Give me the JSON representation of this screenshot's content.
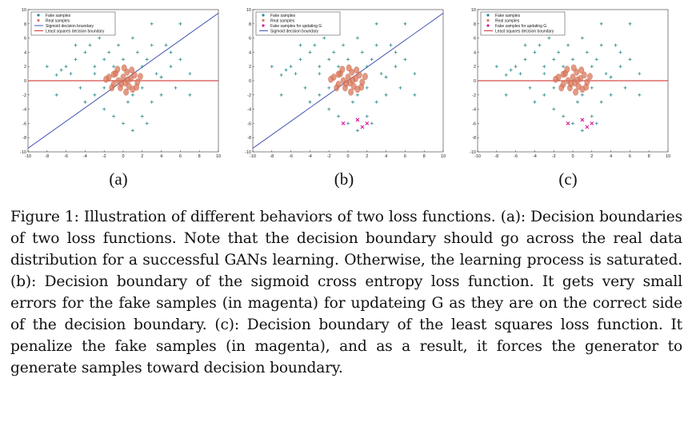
{
  "figure": {
    "panels": [
      {
        "label": "(a)",
        "legend": [
          "Fake samples",
          "Real samples",
          "Sigmoid decision boundary",
          "Least squares decision boundary"
        ],
        "show_magenta": false,
        "show_sigmoid": true,
        "show_lsq": true
      },
      {
        "label": "(b)",
        "legend": [
          "Fake samples",
          "Real samples",
          "Fake samples for updating G",
          "Sigmoid decision boundary"
        ],
        "show_magenta": true,
        "show_sigmoid": true,
        "show_lsq": false
      },
      {
        "label": "(c)",
        "legend": [
          "Fake samples",
          "Real samples",
          "Fake samples for updating G",
          "Least squares decision boundary"
        ],
        "show_magenta": true,
        "show_sigmoid": false,
        "show_lsq": true
      }
    ],
    "caption": "Figure 1: Illustration of different behaviors of two loss functions. (a): Decision boundaries of two loss functions. Note that the decision boundary should go across the real data distribution for a successful GANs learning. Otherwise, the learning process is saturated. (b): Decision boundary of the sigmoid cross entropy loss function. It gets very small errors for the fake samples (in magenta) for updateing G as they are on the correct side of the decision boundary. (c): Decision boundary of the least squares loss function. It penalize the fake samples (in magenta), and as a result, it forces the generator to generate samples toward decision boundary."
  },
  "chart_data": {
    "type": "scatter",
    "xlim": [
      -10,
      10
    ],
    "ylim": [
      -10,
      10
    ],
    "x_ticks": [
      "-10",
      "-8",
      "-6",
      "-4",
      "-2",
      "0",
      "2",
      "4",
      "6",
      "8",
      "10"
    ],
    "y_ticks": [
      "10",
      "8",
      "6",
      "4",
      "2",
      "0",
      "-2",
      "-4",
      "-6",
      "-8",
      "-10"
    ],
    "colors": {
      "fake": "#2a8a8a",
      "real": "#d9775a",
      "magenta": "#e0149b",
      "sigmoid": "#3344aa",
      "lsq": "#cc2222"
    },
    "fake_points": [
      [
        -6,
        2
      ],
      [
        -5.5,
        1
      ],
      [
        -5,
        3
      ],
      [
        -4.5,
        -1
      ],
      [
        -4,
        4
      ],
      [
        -3.5,
        5
      ],
      [
        -3,
        2
      ],
      [
        -3,
        -2
      ],
      [
        -2.5,
        6
      ],
      [
        -2,
        3
      ],
      [
        -2,
        -4
      ],
      [
        -1.5,
        4
      ],
      [
        -1,
        7
      ],
      [
        -1,
        -5
      ],
      [
        -0.5,
        5
      ],
      [
        0,
        3
      ],
      [
        0.5,
        -3
      ],
      [
        1,
        6
      ],
      [
        1,
        -2
      ],
      [
        1.5,
        4
      ],
      [
        2,
        2
      ],
      [
        2,
        -1
      ],
      [
        2.5,
        3
      ],
      [
        3,
        -3
      ],
      [
        3.5,
        1
      ],
      [
        4,
        -2
      ],
      [
        4.5,
        5
      ],
      [
        5,
        2
      ],
      [
        5.5,
        -1
      ],
      [
        6,
        8
      ],
      [
        -7,
        -2
      ],
      [
        -6.5,
        1.5
      ],
      [
        -4,
        -3
      ],
      [
        -3,
        1
      ],
      [
        -1,
        2
      ],
      [
        0,
        -6
      ],
      [
        1,
        -7
      ],
      [
        2,
        -5
      ],
      [
        3,
        5
      ],
      [
        3,
        8
      ],
      [
        5,
        4
      ],
      [
        6,
        3
      ],
      [
        -5,
        5
      ],
      [
        -2,
        -1
      ],
      [
        4,
        0.5
      ],
      [
        -8,
        2
      ],
      [
        -7,
        0.8
      ],
      [
        7,
        1
      ],
      [
        7,
        -2
      ],
      [
        2.5,
        -6
      ]
    ],
    "real_points": [
      [
        -1.5,
        0.5
      ],
      [
        -1,
        -0.5
      ],
      [
        -0.8,
        1
      ],
      [
        -0.5,
        0
      ],
      [
        -0.3,
        -1
      ],
      [
        0,
        0.5
      ],
      [
        0.2,
        -0.3
      ],
      [
        0.4,
        1.2
      ],
      [
        0.6,
        -0.8
      ],
      [
        0.8,
        0.3
      ],
      [
        1,
        -1.2
      ],
      [
        1.2,
        0.8
      ],
      [
        1.5,
        -0.2
      ],
      [
        -1.2,
        -1
      ],
      [
        -0.6,
        1.6
      ],
      [
        0.3,
        -1.6
      ],
      [
        1.8,
        0.6
      ],
      [
        -1.8,
        0.2
      ],
      [
        0.1,
        1.8
      ],
      [
        0.9,
        1.5
      ],
      [
        -0.2,
        -0.4
      ],
      [
        0.5,
        0.1
      ],
      [
        -1,
        0.9
      ],
      [
        1.4,
        -0.9
      ]
    ],
    "magenta_points": [
      [
        -0.5,
        -6
      ],
      [
        1,
        -5.5
      ],
      [
        1.5,
        -6.5
      ],
      [
        2,
        -6
      ]
    ],
    "sigmoid_line": [
      [
        -10,
        -9.5
      ],
      [
        10,
        9.5
      ]
    ],
    "lsq_line": [
      [
        -10,
        0
      ],
      [
        10,
        0
      ]
    ]
  }
}
